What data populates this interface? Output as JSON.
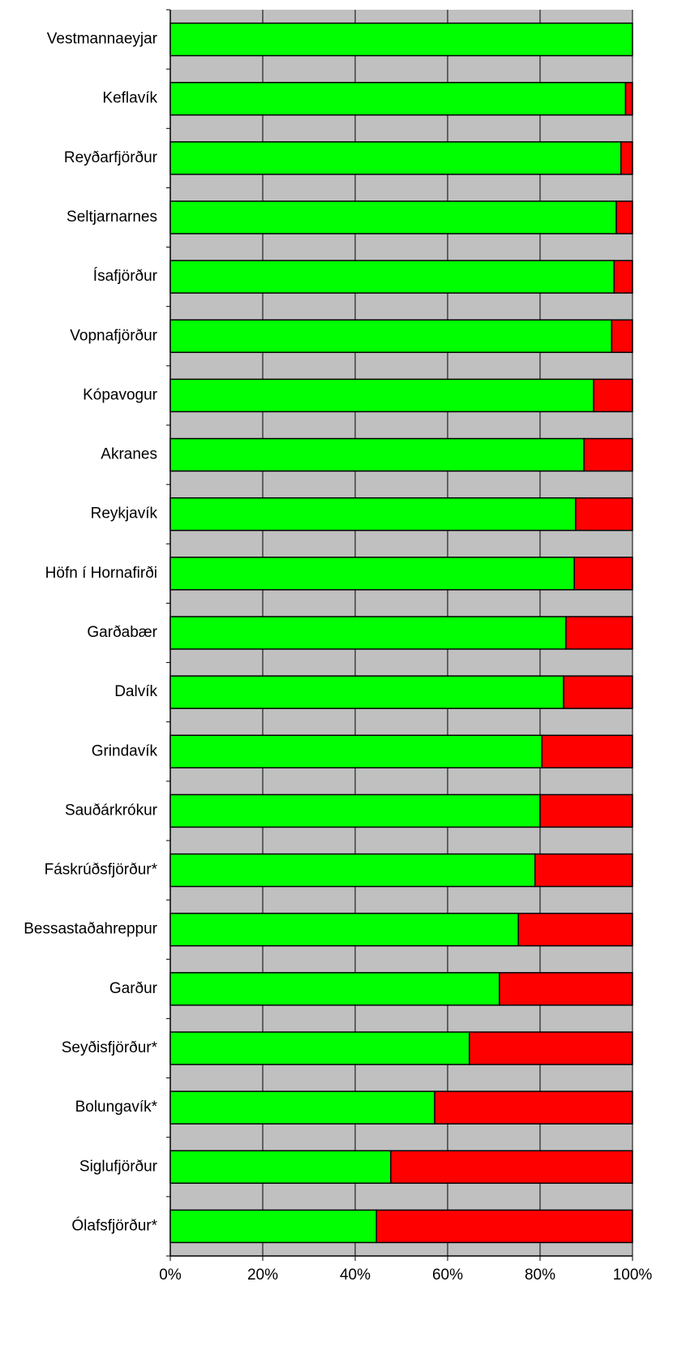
{
  "chart_data": {
    "type": "bar",
    "orientation": "horizontal",
    "stacked": true,
    "categories": [
      "Vestmannaeyjar",
      "Keflavík",
      "Reyðarfjörður",
      "Seltjarnarnes",
      "Ísafjörður",
      "Vopnafjörður",
      "Kópavogur",
      "Akranes",
      "Reykjavík",
      "Höfn í Hornafirði",
      "Garðabær",
      "Dalvík",
      "Grindavík",
      "Sauðárkrókur",
      "Fáskrúðsfjörður*",
      "Bessastaðahreppur",
      "Garður",
      "Seyðisfjörður*",
      "Bolungavík*",
      "Siglufjörður",
      "Ólafsfjörður*"
    ],
    "series": [
      {
        "color": "#00ff00",
        "values": [
          100,
          98.5,
          97.5,
          96.5,
          96,
          95.5,
          91.6,
          89.5,
          87.7,
          87.4,
          85.6,
          85.1,
          80.4,
          80,
          78.9,
          75.3,
          71.2,
          64.7,
          57.2,
          47.7,
          44.6
        ]
      },
      {
        "color": "#ff0000",
        "values": [
          0,
          1.5,
          2.5,
          3.5,
          4,
          4.5,
          8.4,
          10.5,
          12.3,
          12.6,
          14.4,
          14.9,
          19.6,
          20,
          21.1,
          24.7,
          28.8,
          35.3,
          42.8,
          52.3,
          55.4
        ]
      }
    ],
    "xlim": [
      0,
      100
    ],
    "xticks": [
      {
        "value": 0,
        "label": "0%"
      },
      {
        "value": 20,
        "label": "20%"
      },
      {
        "value": 40,
        "label": "40%"
      },
      {
        "value": 60,
        "label": "60%"
      },
      {
        "value": 80,
        "label": "80%"
      },
      {
        "value": 100,
        "label": "100%"
      }
    ],
    "grid": true,
    "plot_background": "#c0c0c0"
  }
}
